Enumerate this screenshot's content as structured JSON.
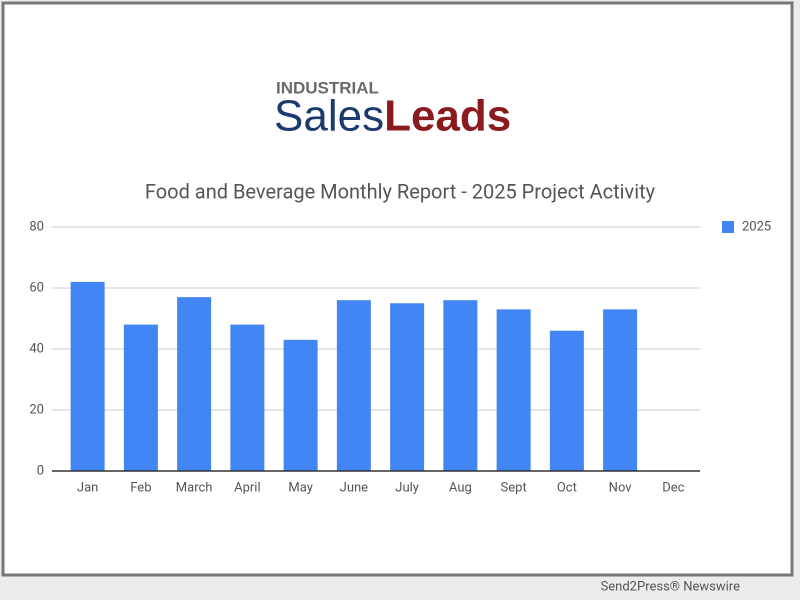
{
  "logo": {
    "top": "INDUSTRIAL",
    "left": "Sales",
    "right": "Leads"
  },
  "chart_data": {
    "type": "bar",
    "title": "Food and Beverage Monthly Report - 2025 Project Activity",
    "categories": [
      "Jan",
      "Feb",
      "March",
      "April",
      "May",
      "June",
      "July",
      "Aug",
      "Sept",
      "Oct",
      "Nov",
      "Dec"
    ],
    "series": [
      {
        "name": "2025",
        "color": "#4285f4",
        "values": [
          62,
          48,
          57,
          48,
          43,
          56,
          55,
          56,
          53,
          46,
          53,
          null
        ]
      }
    ],
    "ylim": [
      0,
      80
    ],
    "yticks": [
      0,
      20,
      40,
      60,
      80
    ],
    "grid": true,
    "legend": "top-right"
  },
  "footer": "Send2Press® Newswire"
}
